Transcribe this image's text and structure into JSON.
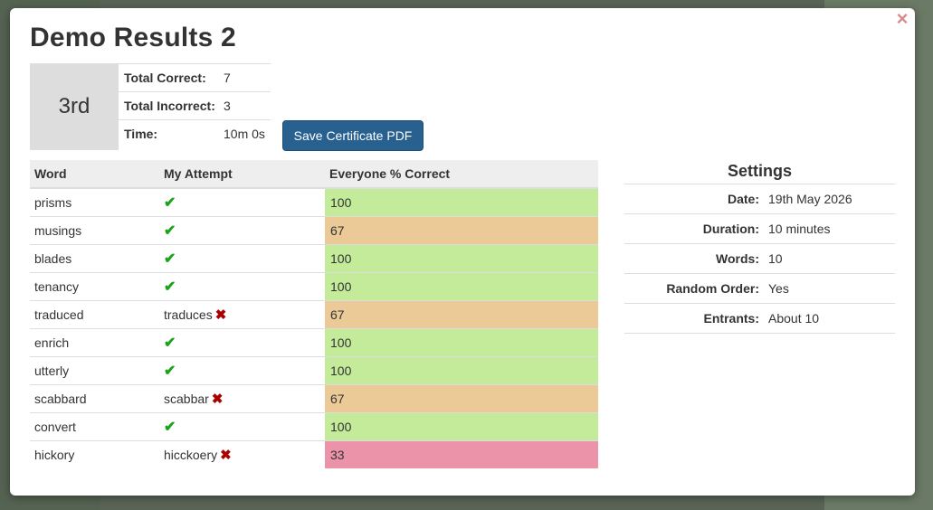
{
  "title": "Demo Results 2",
  "close_icon": "×",
  "rank": "3rd",
  "summary": [
    {
      "label": "Total Correct:",
      "value": "7"
    },
    {
      "label": "Total Incorrect:",
      "value": "3"
    },
    {
      "label": "Time:",
      "value": "10m 0s"
    }
  ],
  "save_button": "Save Certificate PDF",
  "table": {
    "headers": [
      "Word",
      "My Attempt",
      "Everyone % Correct"
    ],
    "rows": [
      {
        "word": "prisms",
        "attempt": "",
        "correct": true,
        "percent": "100"
      },
      {
        "word": "musings",
        "attempt": "",
        "correct": true,
        "percent": "67"
      },
      {
        "word": "blades",
        "attempt": "",
        "correct": true,
        "percent": "100"
      },
      {
        "word": "tenancy",
        "attempt": "",
        "correct": true,
        "percent": "100"
      },
      {
        "word": "traduced",
        "attempt": "traduces",
        "correct": false,
        "percent": "67"
      },
      {
        "word": "enrich",
        "attempt": "",
        "correct": true,
        "percent": "100"
      },
      {
        "word": "utterly",
        "attempt": "",
        "correct": true,
        "percent": "100"
      },
      {
        "word": "scabbard",
        "attempt": "scabbar",
        "correct": false,
        "percent": "67"
      },
      {
        "word": "convert",
        "attempt": "",
        "correct": true,
        "percent": "100"
      },
      {
        "word": "hickory",
        "attempt": "hicckoery",
        "correct": false,
        "percent": "33"
      }
    ]
  },
  "colors": {
    "high": "#c3eb9a",
    "mid": "#ebca98",
    "low": "#eb93a9",
    "tick": "#19a319",
    "cross": "#aa0000",
    "button": "#286090"
  },
  "icons": {
    "tick": "✔",
    "cross": "✖"
  },
  "settings": {
    "title": "Settings",
    "items": [
      {
        "label": "Date:",
        "value": "19th May 2026"
      },
      {
        "label": "Duration:",
        "value": "10 minutes"
      },
      {
        "label": "Words:",
        "value": "10"
      },
      {
        "label": "Random Order:",
        "value": "Yes"
      },
      {
        "label": "Entrants:",
        "value": "About 10"
      }
    ]
  }
}
